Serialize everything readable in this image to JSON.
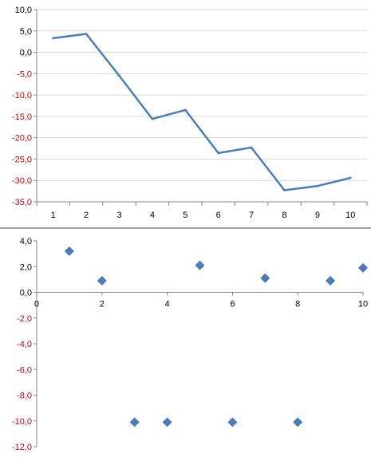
{
  "colors": {
    "series": "#4a7ebb",
    "grid": "#d9d9d9",
    "axis": "#868686",
    "negative_label": "#cc0000",
    "positive_label": "#000000",
    "separator": "#808080"
  },
  "chart_data": [
    {
      "type": "line",
      "title": "",
      "xlabel": "",
      "ylabel": "",
      "categories": [
        "1",
        "2",
        "3",
        "4",
        "5",
        "6",
        "7",
        "8",
        "9",
        "10"
      ],
      "series": [
        {
          "values": [
            3.3,
            4.3,
            -5.5,
            -15.6,
            -13.5,
            -23.6,
            -22.3,
            -32.3,
            -31.3,
            -29.4
          ]
        }
      ],
      "ylim": [
        -35,
        10
      ],
      "yticks": [
        "10,0",
        "5,0",
        "0,0",
        "-5,0",
        "-10,0",
        "-15,0",
        "-20,0",
        "-25,0",
        "-30,0",
        "-35,0"
      ],
      "grid": "horizontal",
      "legend": "none"
    },
    {
      "type": "scatter",
      "title": "",
      "xlabel": "",
      "ylabel": "",
      "series": [
        {
          "x": [
            1,
            2,
            3,
            4,
            5,
            6,
            7,
            8,
            9,
            10
          ],
          "y": [
            3.2,
            0.9,
            -10.1,
            -10.1,
            2.1,
            -10.1,
            1.1,
            -10.1,
            0.9,
            1.9
          ]
        }
      ],
      "xlim": [
        0,
        10
      ],
      "ylim": [
        -12,
        4
      ],
      "xticks": [
        "0",
        "2",
        "4",
        "6",
        "8",
        "10"
      ],
      "yticks": [
        "4,0",
        "2,0",
        "0,0",
        "-2,0",
        "-4,0",
        "-6,0",
        "-8,0",
        "-10,0",
        "-12,0"
      ],
      "grid": "none",
      "legend": "none"
    }
  ]
}
